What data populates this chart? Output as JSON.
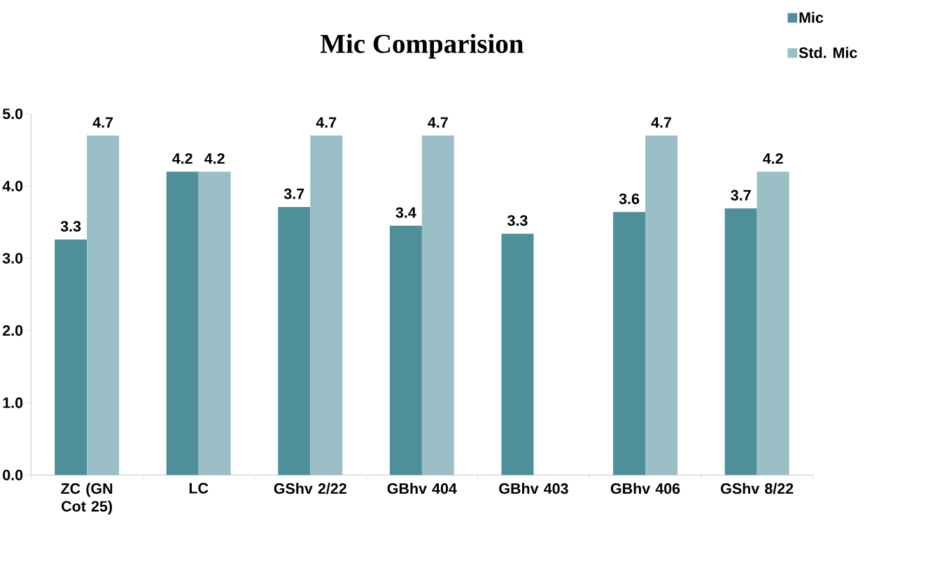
{
  "chart_data": {
    "type": "bar",
    "title": "Mic Comparision",
    "categories": [
      "ZC (GN Cot 25)",
      "LC",
      "GShv 2/22",
      "GBhv 404",
      "GBhv 403",
      "GBhv 406",
      "GShv 8/22"
    ],
    "series": [
      {
        "name": "Mic",
        "color": "#4f8f99",
        "values": [
          3.26,
          4.2,
          3.71,
          3.45,
          3.34,
          3.64,
          3.69
        ],
        "value_labels": [
          "3.3",
          "4.2",
          "3.7",
          "3.4",
          "3.3",
          "3.6",
          "3.7"
        ]
      },
      {
        "name": "Std. Mic",
        "color": "#9bbfc6",
        "values": [
          4.7,
          4.2,
          4.7,
          4.7,
          null,
          4.7,
          4.2
        ],
        "value_labels": [
          "4.7",
          "4.2",
          "4.7",
          "4.7",
          null,
          "4.7",
          "4.2"
        ]
      }
    ],
    "ylim": [
      0,
      5
    ],
    "yticks": [
      {
        "value": 0,
        "label": "0.0"
      },
      {
        "value": 1,
        "label": "1.0"
      },
      {
        "value": 2,
        "label": "2.0"
      },
      {
        "value": 3,
        "label": "3.0"
      },
      {
        "value": 4,
        "label": "4.0"
      },
      {
        "value": 5,
        "label": "5.0"
      }
    ],
    "grid": false,
    "legend": "top right"
  }
}
